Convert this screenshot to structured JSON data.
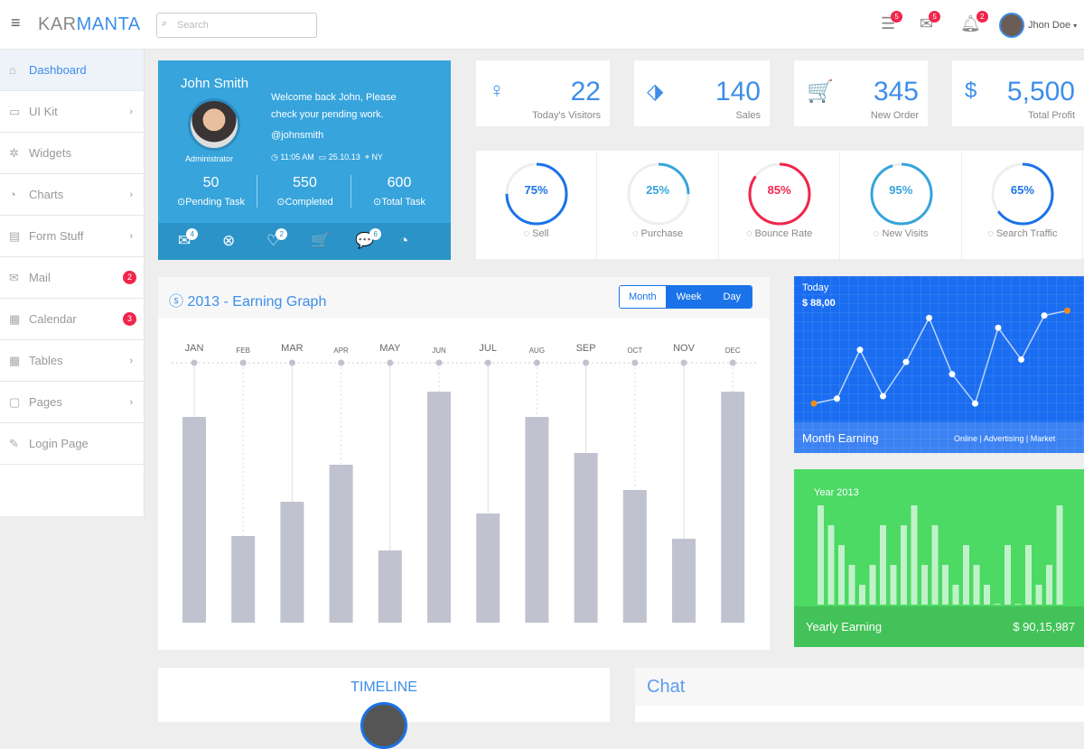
{
  "header": {
    "brand_a": "KAR",
    "brand_b": "MANTA",
    "search_placeholder": "Search",
    "badges": [
      "5",
      "5",
      "2"
    ],
    "user": "Jhon Doe"
  },
  "sidebar": {
    "items": [
      {
        "label": "Dashboard",
        "icon": "⌂",
        "chev": "",
        "count": ""
      },
      {
        "label": "UI Kit",
        "icon": "▭",
        "chev": "›",
        "count": ""
      },
      {
        "label": "Widgets",
        "icon": "✲",
        "chev": "",
        "count": ""
      },
      {
        "label": "Charts",
        "icon": "◔",
        "chev": "›",
        "count": ""
      },
      {
        "label": "Form Stuff",
        "icon": "▤",
        "chev": "›",
        "count": ""
      },
      {
        "label": "Mail",
        "icon": "✉",
        "chev": "",
        "count": "2"
      },
      {
        "label": "Calendar",
        "icon": "▦",
        "chev": "",
        "count": "3"
      },
      {
        "label": "Tables",
        "icon": "▦",
        "chev": "›",
        "count": ""
      },
      {
        "label": "Pages",
        "icon": "▢",
        "chev": "›",
        "count": ""
      },
      {
        "label": "Login Page",
        "icon": "✎",
        "chev": "",
        "count": ""
      }
    ]
  },
  "profile": {
    "name": "John Smith",
    "role": "Administrator",
    "welcome": "Welcome back John, Please check your pending work.",
    "handle": "@johnsmith",
    "time": "11:05 AM",
    "date": "25.10.13",
    "location": "NY",
    "stats": [
      {
        "value": "50",
        "label": "Pending Task"
      },
      {
        "value": "550",
        "label": "Completed"
      },
      {
        "value": "600",
        "label": "Total Task"
      }
    ],
    "toolbar": [
      {
        "icon": "✉",
        "badge": "4"
      },
      {
        "icon": "⊗",
        "badge": ""
      },
      {
        "icon": "♡",
        "badge": "2"
      },
      {
        "icon": "🛒",
        "badge": ""
      },
      {
        "icon": "💬",
        "badge": "6"
      },
      {
        "icon": "◔",
        "badge": ""
      }
    ]
  },
  "stats": [
    {
      "value": "22",
      "label": "Today's Visitors",
      "icon": "♀"
    },
    {
      "value": "140",
      "label": "Sales",
      "icon": "⬗"
    },
    {
      "value": "345",
      "label": "New Order",
      "icon": "🛒"
    },
    {
      "value": "5,500",
      "label": "Total Profit",
      "icon": "$"
    }
  ],
  "gauges": [
    {
      "pct": 75,
      "text": "75%",
      "label": "Sell",
      "color": "#1a73e8"
    },
    {
      "pct": 25,
      "text": "25%",
      "label": "Purchase",
      "color": "#37a4dc"
    },
    {
      "pct": 85,
      "text": "85%",
      "label": "Bounce Rate",
      "color": "#f0264b"
    },
    {
      "pct": 95,
      "text": "95%",
      "label": "New Visits",
      "color": "#37a4dc"
    },
    {
      "pct": 65,
      "text": "65%",
      "label": "Search Traffic",
      "color": "#1a73e8"
    }
  ],
  "earning": {
    "title": "2013 - Earning Graph",
    "tabs": [
      "Month",
      "Week",
      "Day"
    ]
  },
  "month_card": {
    "today": "Today",
    "amount": "$ 88,00",
    "title": "Month Earning",
    "links": [
      "Online",
      "Advertising",
      "Market"
    ]
  },
  "year_card": {
    "year": "Year 2013",
    "title": "Yearly Earning",
    "amount": "$ 90,15,987"
  },
  "timeline": {
    "title": "TIMELINE"
  },
  "chat": {
    "title": "Chat"
  },
  "chart_data": [
    {
      "type": "bar",
      "title": "2013 - Earning Graph",
      "categories": [
        "JAN",
        "FEB",
        "MAR",
        "APR",
        "MAY",
        "JUN",
        "JUL",
        "AUG",
        "SEP",
        "OCT",
        "NOV",
        "DEC"
      ],
      "values": [
        228,
        96,
        134,
        175,
        80,
        256,
        121,
        228,
        188,
        147,
        93,
        256
      ],
      "ylim": [
        0,
        280
      ]
    },
    {
      "type": "line",
      "title": "Month Earning",
      "values": [
        2,
        3,
        13,
        3.5,
        10.5,
        19.5,
        8,
        2,
        17.5,
        11,
        20,
        21
      ],
      "ylim": [
        0,
        24
      ]
    },
    {
      "type": "bar",
      "title": "Year 2013",
      "values": [
        5,
        4,
        3,
        2,
        1,
        2,
        4,
        2,
        4,
        5,
        2,
        4,
        2,
        1,
        3,
        2,
        1,
        0,
        3,
        0,
        3,
        1,
        2,
        5
      ],
      "ylim": [
        0,
        5
      ]
    }
  ]
}
